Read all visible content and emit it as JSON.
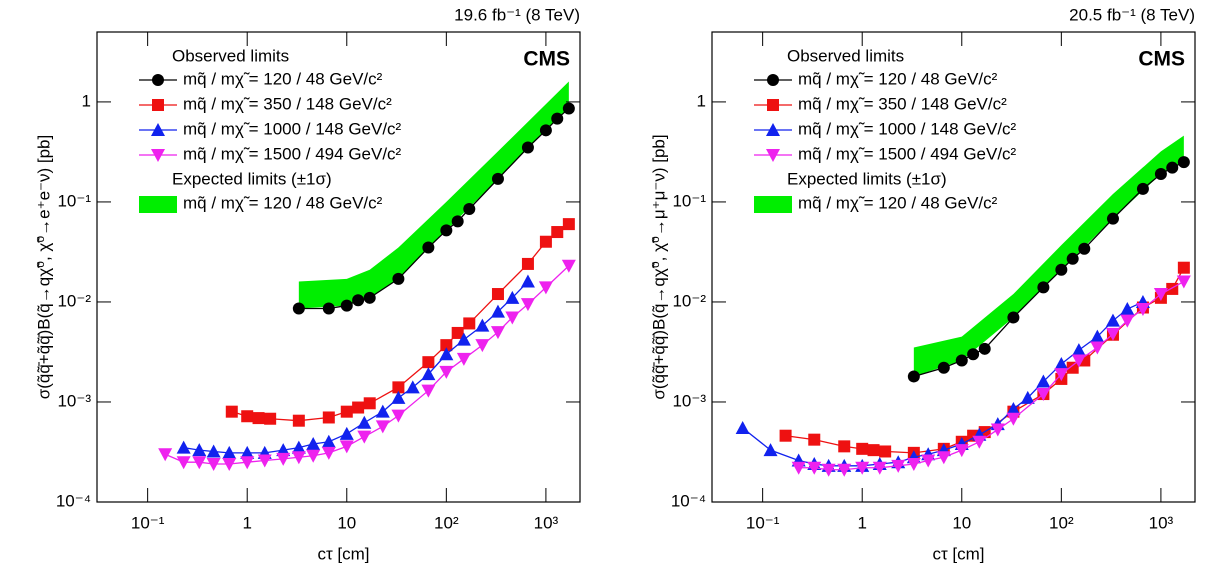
{
  "chart_data": [
    {
      "type": "line",
      "log_x": true,
      "log_y": true,
      "lumi": "19.6 fb⁻¹ (8 TeV)",
      "experiment": "CMS",
      "x_label": "cτ [cm]",
      "y_label": "σ(q̃q̃̄+q̃q̃̄)B(q̃→qχ̃⁰, χ̃⁰→e⁺e⁻ν) [pb]",
      "legend_title": "Observed limits",
      "legend_title2": "Expected limits (±1σ)",
      "xlim": [
        0.031,
        2200
      ],
      "ylim": [
        0.0001,
        5
      ],
      "xticks": [
        {
          "value": 0.1,
          "label": "10⁻¹"
        },
        1,
        10,
        {
          "value": 100,
          "label": "10²"
        },
        {
          "value": 1000,
          "label": "10³"
        }
      ],
      "yticks": [
        {
          "value": 0.0001,
          "label": "10⁻⁴"
        },
        {
          "value": 0.001,
          "label": "10⁻³"
        },
        {
          "value": 0.01,
          "label": "10⁻²"
        },
        {
          "value": 0.1,
          "label": "10⁻¹"
        },
        1
      ],
      "series": [
        {
          "name": "mq̃ / mχ̃ = 120 / 48 GeV/c²",
          "color": "#000000",
          "marker": "circle",
          "x": [
            3.3,
            6.6,
            10,
            13,
            17,
            33,
            66,
            100,
            130,
            170,
            330,
            660,
            1000,
            1300,
            1700
          ],
          "values": [
            0.0086,
            0.0086,
            0.0092,
            0.0104,
            0.011,
            0.017,
            0.035,
            0.052,
            0.064,
            0.085,
            0.17,
            0.35,
            0.52,
            0.68,
            0.86
          ]
        },
        {
          "name": "mq̃ / mχ̃ = 350 / 148 GeV/c²",
          "color": "#ee1111",
          "marker": "square",
          "x": [
            0.7,
            1.0,
            1.3,
            1.7,
            3.3,
            6.6,
            10,
            13,
            17,
            33,
            66,
            100,
            130,
            170,
            330,
            660,
            1000,
            1300,
            1700
          ],
          "values": [
            0.0008,
            0.00072,
            0.00069,
            0.00068,
            0.00065,
            0.0007,
            0.0008,
            0.00088,
            0.00097,
            0.0014,
            0.0025,
            0.0037,
            0.0049,
            0.0061,
            0.012,
            0.024,
            0.04,
            0.05,
            0.06
          ]
        },
        {
          "name": "mq̃ / mχ̃ = 1000 / 148 GeV/c²",
          "color": "#1122ee",
          "marker": "triangle-up",
          "x": [
            0.23,
            0.33,
            0.46,
            0.66,
            1.0,
            1.5,
            2.3,
            3.3,
            4.6,
            6.6,
            10,
            15,
            23,
            33,
            46,
            66,
            100,
            150,
            230,
            330,
            460,
            660
          ],
          "values": [
            0.00035,
            0.00033,
            0.00032,
            0.00031,
            0.00031,
            0.00031,
            0.00033,
            0.00035,
            0.00038,
            0.0004,
            0.00048,
            0.00062,
            0.0008,
            0.0011,
            0.0014,
            0.0019,
            0.003,
            0.0042,
            0.0058,
            0.008,
            0.011,
            0.016
          ]
        },
        {
          "name": "mq̃ / mχ̃ = 1500 / 494 GeV/c²",
          "color": "#ee22ee",
          "marker": "triangle-down",
          "x": [
            0.15,
            0.23,
            0.33,
            0.46,
            0.66,
            1.0,
            1.5,
            2.3,
            3.3,
            4.6,
            6.6,
            10,
            15,
            23,
            33,
            66,
            100,
            150,
            230,
            330,
            460,
            660,
            1000,
            1700
          ],
          "values": [
            0.0003,
            0.00025,
            0.00025,
            0.00024,
            0.00024,
            0.00025,
            0.00026,
            0.00027,
            0.00028,
            0.00029,
            0.00031,
            0.00036,
            0.00045,
            0.00057,
            0.00073,
            0.0013,
            0.002,
            0.0027,
            0.0037,
            0.005,
            0.007,
            0.0095,
            0.014,
            0.023
          ]
        }
      ],
      "band": {
        "name": "mq̃ / mχ̃ = 120 / 48 GeV/c²",
        "color": "#00ee00",
        "x": [
          3.3,
          10,
          17,
          33,
          100,
          330,
          1000,
          1700
        ],
        "lower": [
          0.0086,
          0.0092,
          0.011,
          0.017,
          0.052,
          0.17,
          0.52,
          0.86
        ],
        "upper": [
          0.016,
          0.017,
          0.021,
          0.035,
          0.1,
          0.32,
          0.95,
          1.6
        ]
      }
    },
    {
      "type": "line",
      "log_x": true,
      "log_y": true,
      "lumi": "20.5 fb⁻¹ (8 TeV)",
      "experiment": "CMS",
      "x_label": "cτ [cm]",
      "y_label": "σ(q̃q̃̄+q̃q̃̄)B(q̃→qχ̃⁰, χ̃⁰→μ⁺μ⁻ν) [pb]",
      "legend_title": "Observed limits",
      "legend_title2": "Expected limits (±1σ)",
      "xlim": [
        0.031,
        2200
      ],
      "ylim": [
        0.0001,
        5
      ],
      "xticks": [
        {
          "value": 0.1,
          "label": "10⁻¹"
        },
        1,
        10,
        {
          "value": 100,
          "label": "10²"
        },
        {
          "value": 1000,
          "label": "10³"
        }
      ],
      "yticks": [
        {
          "value": 0.0001,
          "label": "10⁻⁴"
        },
        {
          "value": 0.001,
          "label": "10⁻³"
        },
        {
          "value": 0.01,
          "label": "10⁻²"
        },
        {
          "value": 0.1,
          "label": "10⁻¹"
        },
        1
      ],
      "series": [
        {
          "name": "mq̃ / mχ̃ = 120 / 48 GeV/c²",
          "color": "#000000",
          "marker": "circle",
          "x": [
            3.3,
            6.6,
            10,
            13,
            17,
            33,
            66,
            100,
            130,
            170,
            330,
            660,
            1000,
            1300,
            1700
          ],
          "values": [
            0.0018,
            0.0022,
            0.0026,
            0.003,
            0.0034,
            0.007,
            0.014,
            0.021,
            0.027,
            0.034,
            0.068,
            0.135,
            0.19,
            0.22,
            0.25
          ]
        },
        {
          "name": "mq̃ / mχ̃ = 350 / 148 GeV/c²",
          "color": "#ee1111",
          "marker": "square",
          "x": [
            0.17,
            0.33,
            0.66,
            1.0,
            1.3,
            1.7,
            3.3,
            6.6,
            10,
            13,
            17,
            33,
            66,
            100,
            130,
            170,
            330,
            660,
            1000,
            1300,
            1700
          ],
          "values": [
            0.00046,
            0.00042,
            0.00036,
            0.00034,
            0.00033,
            0.00032,
            0.00031,
            0.00034,
            0.0004,
            0.00046,
            0.0005,
            0.0008,
            0.0012,
            0.0017,
            0.0022,
            0.0026,
            0.0047,
            0.0088,
            0.011,
            0.0135,
            0.022
          ]
        },
        {
          "name": "mq̃ / mχ̃ = 1000 / 148 GeV/c²",
          "color": "#1122ee",
          "marker": "triangle-up",
          "x": [
            0.063,
            0.12,
            0.23,
            0.33,
            0.46,
            0.66,
            1.0,
            1.5,
            2.3,
            3.3,
            4.6,
            6.6,
            10,
            15,
            23,
            33,
            46,
            66,
            100,
            150,
            230,
            330,
            460,
            660
          ],
          "values": [
            0.00055,
            0.00033,
            0.00026,
            0.00024,
            0.00023,
            0.00023,
            0.00023,
            0.00024,
            0.00025,
            0.00028,
            0.0003,
            0.00033,
            0.00038,
            0.00047,
            0.0006,
            0.00085,
            0.0011,
            0.0016,
            0.0024,
            0.0033,
            0.0045,
            0.0065,
            0.0085,
            0.01
          ]
        },
        {
          "name": "mq̃ / mχ̃ = 1500 / 494 GeV/c²",
          "color": "#ee22ee",
          "marker": "triangle-down",
          "x": [
            0.23,
            0.33,
            0.46,
            0.66,
            1.0,
            1.5,
            2.3,
            3.3,
            4.6,
            6.6,
            10,
            15,
            23,
            33,
            66,
            100,
            150,
            230,
            330,
            460,
            660,
            1000,
            1700
          ],
          "values": [
            0.00022,
            0.00022,
            0.00021,
            0.00021,
            0.00022,
            0.00022,
            0.00023,
            0.00024,
            0.00026,
            0.00028,
            0.00033,
            0.0004,
            0.00053,
            0.00068,
            0.0012,
            0.0019,
            0.0026,
            0.0035,
            0.0048,
            0.0065,
            0.0085,
            0.012,
            0.016
          ]
        }
      ],
      "band": {
        "name": "mq̃ / mχ̃ = 120 / 48 GeV/c²",
        "color": "#00ee00",
        "x": [
          3.3,
          10,
          33,
          100,
          330,
          1000,
          1700
        ],
        "lower": [
          0.0018,
          0.0026,
          0.007,
          0.021,
          0.068,
          0.19,
          0.25
        ],
        "upper": [
          0.0035,
          0.0045,
          0.012,
          0.037,
          0.12,
          0.32,
          0.46
        ]
      }
    }
  ]
}
